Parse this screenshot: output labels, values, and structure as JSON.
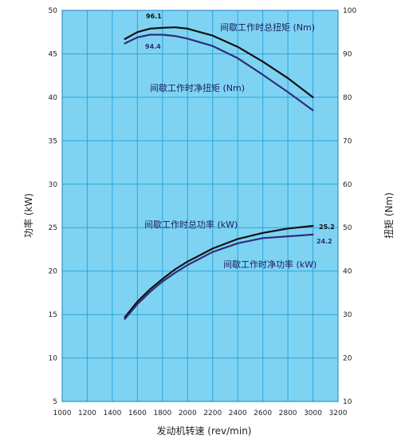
{
  "chart_data": {
    "type": "line",
    "xlabel": "发动机转速 (rev/min)",
    "ylabel_left": "功率 (kW)",
    "ylabel_right": "扭矩 (Nm)",
    "xlim": [
      1000,
      3200
    ],
    "xticks": [
      1000,
      1200,
      1400,
      1600,
      1800,
      2000,
      2200,
      2400,
      2600,
      2800,
      3000,
      3200
    ],
    "ylim_left": [
      5,
      50
    ],
    "yticks_left": [
      5,
      10,
      15,
      20,
      25,
      30,
      35,
      40,
      45,
      50
    ],
    "ylim_right": [
      10,
      100
    ],
    "yticks_right": [
      10,
      20,
      30,
      40,
      50,
      60,
      70,
      80,
      90,
      100
    ],
    "grid": true,
    "background": "#7fd3f2",
    "grid_color": "#2aa6dc",
    "series": [
      {
        "name": "间歇工作时总扭矩 (Nm)",
        "axis": "right",
        "color": "#111111",
        "x": [
          1500,
          1600,
          1700,
          1800,
          1900,
          2000,
          2200,
          2400,
          2600,
          2800,
          3000
        ],
        "y": [
          93.4,
          95.0,
          95.8,
          96.0,
          96.1,
          95.8,
          94.2,
          91.6,
          88.2,
          84.4,
          80.0
        ]
      },
      {
        "name": "间歇工作时净扭矩 (Nm)",
        "axis": "right",
        "color": "#2e2e7c",
        "x": [
          1500,
          1600,
          1700,
          1800,
          1900,
          2000,
          2200,
          2400,
          2600,
          2800,
          3000
        ],
        "y": [
          92.4,
          93.8,
          94.4,
          94.4,
          94.1,
          93.5,
          91.8,
          89.0,
          85.2,
          81.2,
          77.0
        ]
      },
      {
        "name": "间歇工作时总功率 (kW)",
        "axis": "left",
        "color": "#111111",
        "x": [
          1500,
          1600,
          1700,
          1800,
          1900,
          2000,
          2200,
          2400,
          2600,
          2800,
          3000
        ],
        "y": [
          14.7,
          16.5,
          17.9,
          19.1,
          20.2,
          21.1,
          22.6,
          23.7,
          24.4,
          24.9,
          25.2
        ]
      },
      {
        "name": "间歇工作时净功率 (kW)",
        "axis": "left",
        "color": "#2e2e7c",
        "x": [
          1500,
          1600,
          1700,
          1800,
          1900,
          2000,
          2200,
          2400,
          2600,
          2800,
          3000
        ],
        "y": [
          14.5,
          16.2,
          17.6,
          18.8,
          19.8,
          20.7,
          22.2,
          23.2,
          23.8,
          24.0,
          24.2
        ]
      }
    ],
    "data_labels": [
      {
        "text": "96.1",
        "series": 0
      },
      {
        "text": "94.4",
        "series": 1
      },
      {
        "text": "25.2",
        "series": 2
      },
      {
        "text": "24.2",
        "series": 3
      }
    ]
  }
}
